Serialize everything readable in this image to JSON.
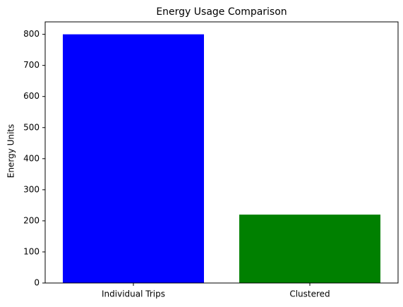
{
  "chart_data": {
    "type": "bar",
    "title": "Energy Usage Comparison",
    "y_label": "Energy Units",
    "categories": [
      "Individual Trips",
      "Clustered"
    ],
    "values": [
      800,
      220
    ],
    "colors": [
      "#0000ff",
      "#008000"
    ],
    "ylim": [
      0,
      840
    ],
    "yticks": [
      0,
      100,
      200,
      300,
      400,
      500,
      600,
      700,
      800
    ],
    "grid": false
  }
}
